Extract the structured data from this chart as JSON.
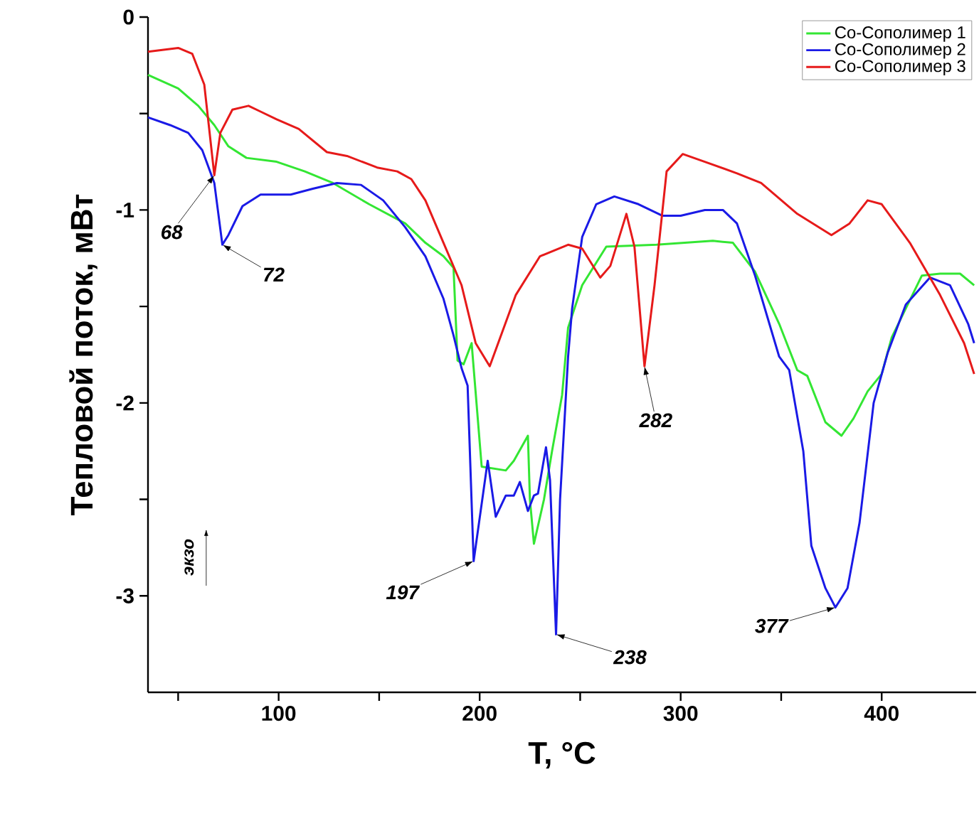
{
  "chart_data": {
    "type": "line",
    "xlabel": "T, °C",
    "ylabel": "Тепловой поток, мВт",
    "xlim": [
      35,
      447
    ],
    "ylim": [
      -3.5,
      0
    ],
    "xticks": [
      {
        "value": 50,
        "label": null
      },
      100,
      {
        "value": 150,
        "label": null
      },
      200,
      {
        "value": 250,
        "label": null
      },
      300,
      {
        "value": 350,
        "label": null
      },
      400
    ],
    "yticks": [
      -3,
      {
        "value": -2.5,
        "label": null
      },
      -2,
      {
        "value": -1.5,
        "label": null
      },
      -1,
      {
        "value": -0.5,
        "label": null
      },
      0
    ],
    "legend": "top right",
    "grid": false,
    "marker": "none",
    "line_style": "solid",
    "series": [
      {
        "name": "Co-Сополимер 1",
        "color": "#33e633",
        "x": [
          35,
          50,
          60,
          68,
          75,
          84,
          99,
          113,
          127,
          145,
          163,
          173,
          182,
          187,
          189,
          192,
          196,
          201,
          213,
          217,
          224,
          225,
          227,
          232,
          236,
          241,
          244,
          251,
          263,
          288,
          316,
          326,
          337,
          349,
          358,
          363,
          372,
          380,
          386,
          393,
          400,
          405,
          420,
          429,
          439,
          446
        ],
        "values": [
          -0.3,
          -0.37,
          -0.46,
          -0.56,
          -0.67,
          -0.73,
          -0.75,
          -0.8,
          -0.86,
          -0.97,
          -1.07,
          -1.17,
          -1.24,
          -1.3,
          -1.78,
          -1.8,
          -1.69,
          -2.33,
          -2.35,
          -2.3,
          -2.17,
          -2.5,
          -2.73,
          -2.5,
          -2.25,
          -1.96,
          -1.61,
          -1.39,
          -1.19,
          -1.18,
          -1.16,
          -1.17,
          -1.32,
          -1.59,
          -1.83,
          -1.86,
          -2.1,
          -2.17,
          -2.08,
          -1.94,
          -1.85,
          -1.66,
          -1.34,
          -1.33,
          -1.33,
          -1.39
        ]
      },
      {
        "name": "Co-Сополимер 2",
        "color": "#1a1ae6",
        "x": [
          35,
          46,
          55,
          62,
          68,
          72,
          75,
          82,
          91,
          106,
          117,
          129,
          141,
          152,
          163,
          173,
          182,
          187,
          191,
          194,
          197,
          204,
          208,
          213,
          217,
          220,
          224,
          227,
          229,
          233,
          235,
          238,
          240,
          244,
          246,
          251,
          258,
          267,
          279,
          291,
          300,
          312,
          321,
          328,
          337,
          349,
          354,
          361,
          365,
          372,
          377,
          383,
          389,
          396,
          403,
          412,
          424,
          434,
          443,
          446
        ],
        "values": [
          -0.52,
          -0.56,
          -0.6,
          -0.69,
          -0.86,
          -1.18,
          -1.13,
          -0.98,
          -0.92,
          -0.92,
          -0.89,
          -0.86,
          -0.87,
          -0.95,
          -1.09,
          -1.24,
          -1.46,
          -1.65,
          -1.82,
          -1.91,
          -2.82,
          -2.3,
          -2.59,
          -2.48,
          -2.48,
          -2.41,
          -2.56,
          -2.48,
          -2.47,
          -2.23,
          -2.4,
          -3.2,
          -2.5,
          -1.76,
          -1.51,
          -1.14,
          -0.97,
          -0.93,
          -0.97,
          -1.03,
          -1.03,
          -1.0,
          -1.0,
          -1.07,
          -1.34,
          -1.76,
          -1.83,
          -2.25,
          -2.74,
          -2.96,
          -3.06,
          -2.96,
          -2.62,
          -2.0,
          -1.74,
          -1.49,
          -1.35,
          -1.39,
          -1.59,
          -1.69
        ]
      },
      {
        "name": "Co-Сополимер 3",
        "color": "#e61a1a",
        "x": [
          35,
          50,
          57,
          63,
          68,
          71,
          77,
          85,
          91,
          99,
          110,
          124,
          134,
          149,
          159,
          166,
          173,
          182,
          191,
          198,
          205,
          218,
          230,
          244,
          251,
          260,
          265,
          273,
          277,
          282,
          287,
          293,
          301,
          312,
          328,
          340,
          358,
          375,
          384,
          393,
          400,
          414,
          429,
          441,
          446
        ],
        "values": [
          -0.18,
          -0.16,
          -0.19,
          -0.35,
          -0.82,
          -0.6,
          -0.48,
          -0.46,
          -0.49,
          -0.53,
          -0.58,
          -0.7,
          -0.72,
          -0.78,
          -0.8,
          -0.84,
          -0.95,
          -1.17,
          -1.39,
          -1.69,
          -1.81,
          -1.44,
          -1.24,
          -1.18,
          -1.2,
          -1.35,
          -1.29,
          -1.02,
          -1.19,
          -1.81,
          -1.39,
          -0.8,
          -0.71,
          -0.75,
          -0.81,
          -0.86,
          -1.02,
          -1.13,
          -1.07,
          -0.95,
          -0.97,
          -1.17,
          -1.44,
          -1.69,
          -1.85
        ]
      }
    ],
    "annotations": [
      {
        "text": "68",
        "x": 68,
        "y": -0.82
      },
      {
        "text": "72",
        "x": 72,
        "y": -1.18
      },
      {
        "text": "197",
        "x": 197,
        "y": -2.82
      },
      {
        "text": "238",
        "x": 238,
        "y": -3.2
      },
      {
        "text": "282",
        "x": 282,
        "y": -1.81
      },
      {
        "text": "377",
        "x": 377,
        "y": -3.06
      },
      "экзо"
    ]
  }
}
